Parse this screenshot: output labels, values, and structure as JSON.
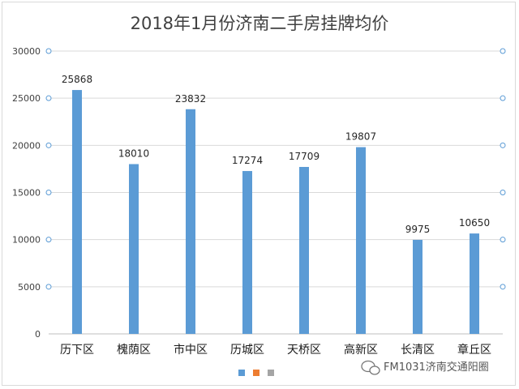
{
  "chart_data": {
    "type": "bar",
    "title": "2018年1月份济南二手房挂牌均价",
    "xlabel": "",
    "ylabel": "",
    "categories": [
      "历下区",
      "槐荫区",
      "市中区",
      "历城区",
      "天桥区",
      "高新区",
      "长清区",
      "章丘区"
    ],
    "values": [
      25868,
      18010,
      23832,
      17274,
      17709,
      19807,
      9975,
      10650
    ],
    "ylim": [
      0,
      30000
    ],
    "yticks": [
      0,
      5000,
      10000,
      15000,
      20000,
      25000,
      30000
    ],
    "grid": true,
    "legend_position": "bottom-center",
    "legend_swatches": [
      "#5b9bd5",
      "#ed7d31",
      "#a5a5a5"
    ],
    "bar_color": "#5b9bd5"
  },
  "watermark": {
    "text": "FM1031济南交通阳圈",
    "icon": "wechat-icon"
  }
}
